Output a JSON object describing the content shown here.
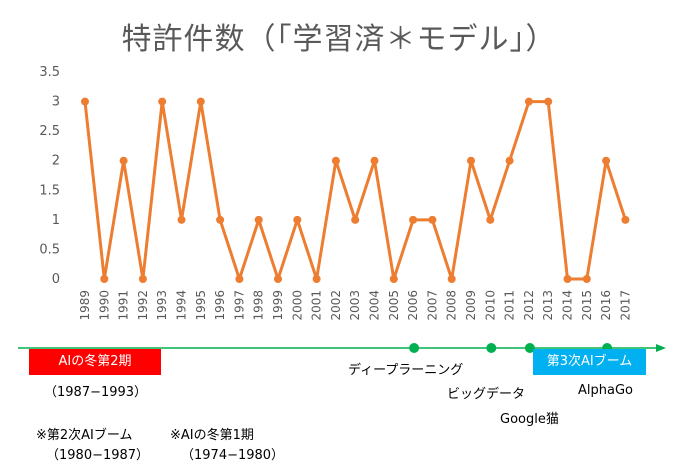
{
  "title": "特許件数（「学習済＊モデル」）",
  "colors": {
    "series": "#ED7D31",
    "axis_text": "#595959",
    "timeline": "#00B050",
    "winter_box": "#FF0000",
    "boom_box": "#00B0F0",
    "grid": "#D9D9D9"
  },
  "chart_data": {
    "type": "line",
    "title": "特許件数（「学習済＊モデル」）",
    "xlabel": "",
    "ylabel": "",
    "ylim": [
      0,
      3.5
    ],
    "yticks": [
      "0",
      "0.5",
      "1",
      "1.5",
      "2",
      "2.5",
      "3",
      "3.5"
    ],
    "grid": false,
    "x": [
      "1989",
      "1990",
      "1991",
      "1992",
      "1993",
      "1994",
      "1995",
      "1996",
      "1997",
      "1998",
      "1999",
      "2000",
      "2001",
      "2002",
      "2003",
      "2004",
      "2005",
      "2006",
      "2007",
      "2008",
      "2009",
      "2010",
      "2011",
      "2012",
      "2013",
      "2014",
      "2015",
      "2016",
      "2017"
    ],
    "series": [
      {
        "values": [
          3,
          0,
          2,
          0,
          3,
          1,
          3,
          1,
          0,
          1,
          0,
          1,
          0,
          2,
          1,
          2,
          0,
          1,
          1,
          0,
          2,
          1,
          2,
          3,
          3,
          0,
          0,
          2,
          1
        ]
      }
    ]
  },
  "timeline": {
    "events": [
      {
        "year": "2006",
        "label": "ディープラーニング"
      },
      {
        "year": "2010",
        "label": "ビッグデータ"
      },
      {
        "year": "2012",
        "label": "Google猫"
      },
      {
        "year": "2016",
        "label": "AlphaGo"
      }
    ],
    "winter2": {
      "label": "AIの冬第2期",
      "period": "（1987−1993）"
    },
    "boom3": {
      "label": "第3次AIブーム"
    },
    "boom2": {
      "label": "※第2次AIブーム",
      "period": "（1980−1987）"
    },
    "winter1": {
      "label": "※AIの冬第1期",
      "period": "（1974−1980）"
    }
  }
}
